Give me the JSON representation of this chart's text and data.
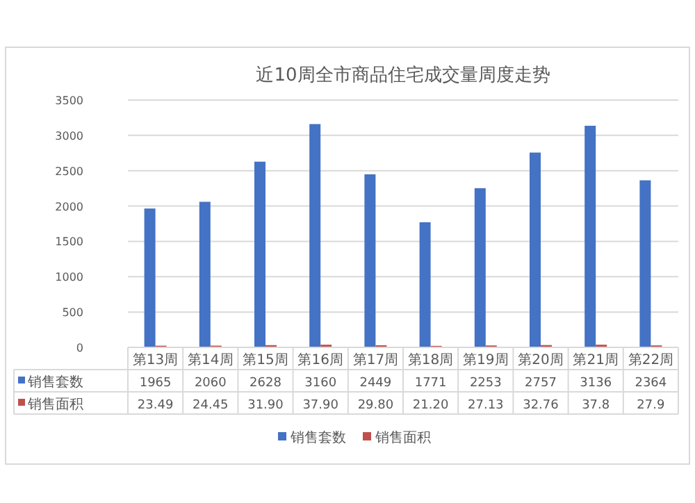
{
  "chart_data": {
    "type": "bar",
    "title": "近10周全市商品住宅成交量周度走势",
    "categories": [
      "第13周",
      "第14周",
      "第15周",
      "第16周",
      "第17周",
      "第18周",
      "第19周",
      "第20周",
      "第21周",
      "第22周"
    ],
    "series": [
      {
        "name": "销售套数",
        "color": "#4472c4",
        "values": [
          1965,
          2060,
          2628,
          3160,
          2449,
          1771,
          2253,
          2757,
          3136,
          2364
        ],
        "value_labels": [
          "1965",
          "2060",
          "2628",
          "3160",
          "2449",
          "1771",
          "2253",
          "2757",
          "3136",
          "2364"
        ]
      },
      {
        "name": "销售面积",
        "color": "#c0504d",
        "values": [
          23.49,
          24.45,
          31.9,
          37.9,
          29.8,
          21.2,
          27.13,
          32.76,
          37.8,
          27.9
        ],
        "value_labels": [
          "23.49",
          "24.45",
          "31.90",
          "37.90",
          "29.80",
          "21.20",
          "27.13",
          "32.76",
          "37.8",
          "27.9"
        ]
      }
    ],
    "ylim": [
      0,
      3500
    ],
    "yticks": [
      0,
      500,
      1000,
      1500,
      2000,
      2500,
      3000,
      3500
    ],
    "grid": "y",
    "legend": "bottom"
  }
}
